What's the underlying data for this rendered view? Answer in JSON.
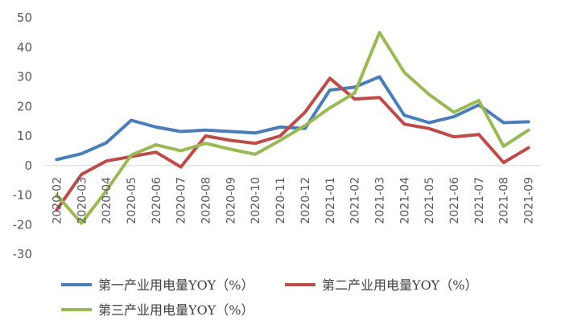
{
  "chart_data": {
    "type": "line",
    "title": "",
    "xlabel": "",
    "ylabel": "",
    "ylim": [
      -30,
      50
    ],
    "yticks": [
      -30,
      -20,
      -10,
      0,
      10,
      20,
      30,
      40,
      50
    ],
    "grid": false,
    "legend_position": "bottom",
    "categories": [
      "2020-02",
      "2020-03",
      "2020-04",
      "2020-05",
      "2020-06",
      "2020-07",
      "2020-08",
      "2020-09",
      "2020-10",
      "2020-11",
      "2020-12",
      "2021-01",
      "2021-02",
      "2021-03",
      "2021-04",
      "2021-05",
      "2021-06",
      "2021-07",
      "2021-08",
      "2021-09"
    ],
    "series": [
      {
        "name": "第一产业用电量YOY（%）",
        "color": "#4a7ebb",
        "values": [
          2,
          4,
          7.7,
          15.3,
          13,
          11.5,
          12,
          11.5,
          11,
          13,
          12.5,
          25.5,
          26.5,
          30,
          17,
          14.5,
          16.5,
          20.5,
          14.5,
          14.8
        ]
      },
      {
        "name": "第二产业用电量YOY（%）",
        "color": "#be4b48",
        "values": [
          -15,
          -3,
          1.5,
          3,
          4.5,
          -0.5,
          10,
          8.5,
          7.5,
          10,
          18,
          29.5,
          22.5,
          23,
          14,
          12.5,
          9.7,
          10.5,
          1,
          6
        ]
      },
      {
        "name": "第三产业用电量YOY（%）",
        "color": "#98b954",
        "values": [
          -10,
          -19.5,
          -8.5,
          3.5,
          7,
          5,
          7.5,
          5.5,
          3.8,
          8.5,
          13.5,
          19.5,
          24.5,
          45,
          31.5,
          24,
          18,
          22,
          6.5,
          12
        ]
      }
    ]
  }
}
